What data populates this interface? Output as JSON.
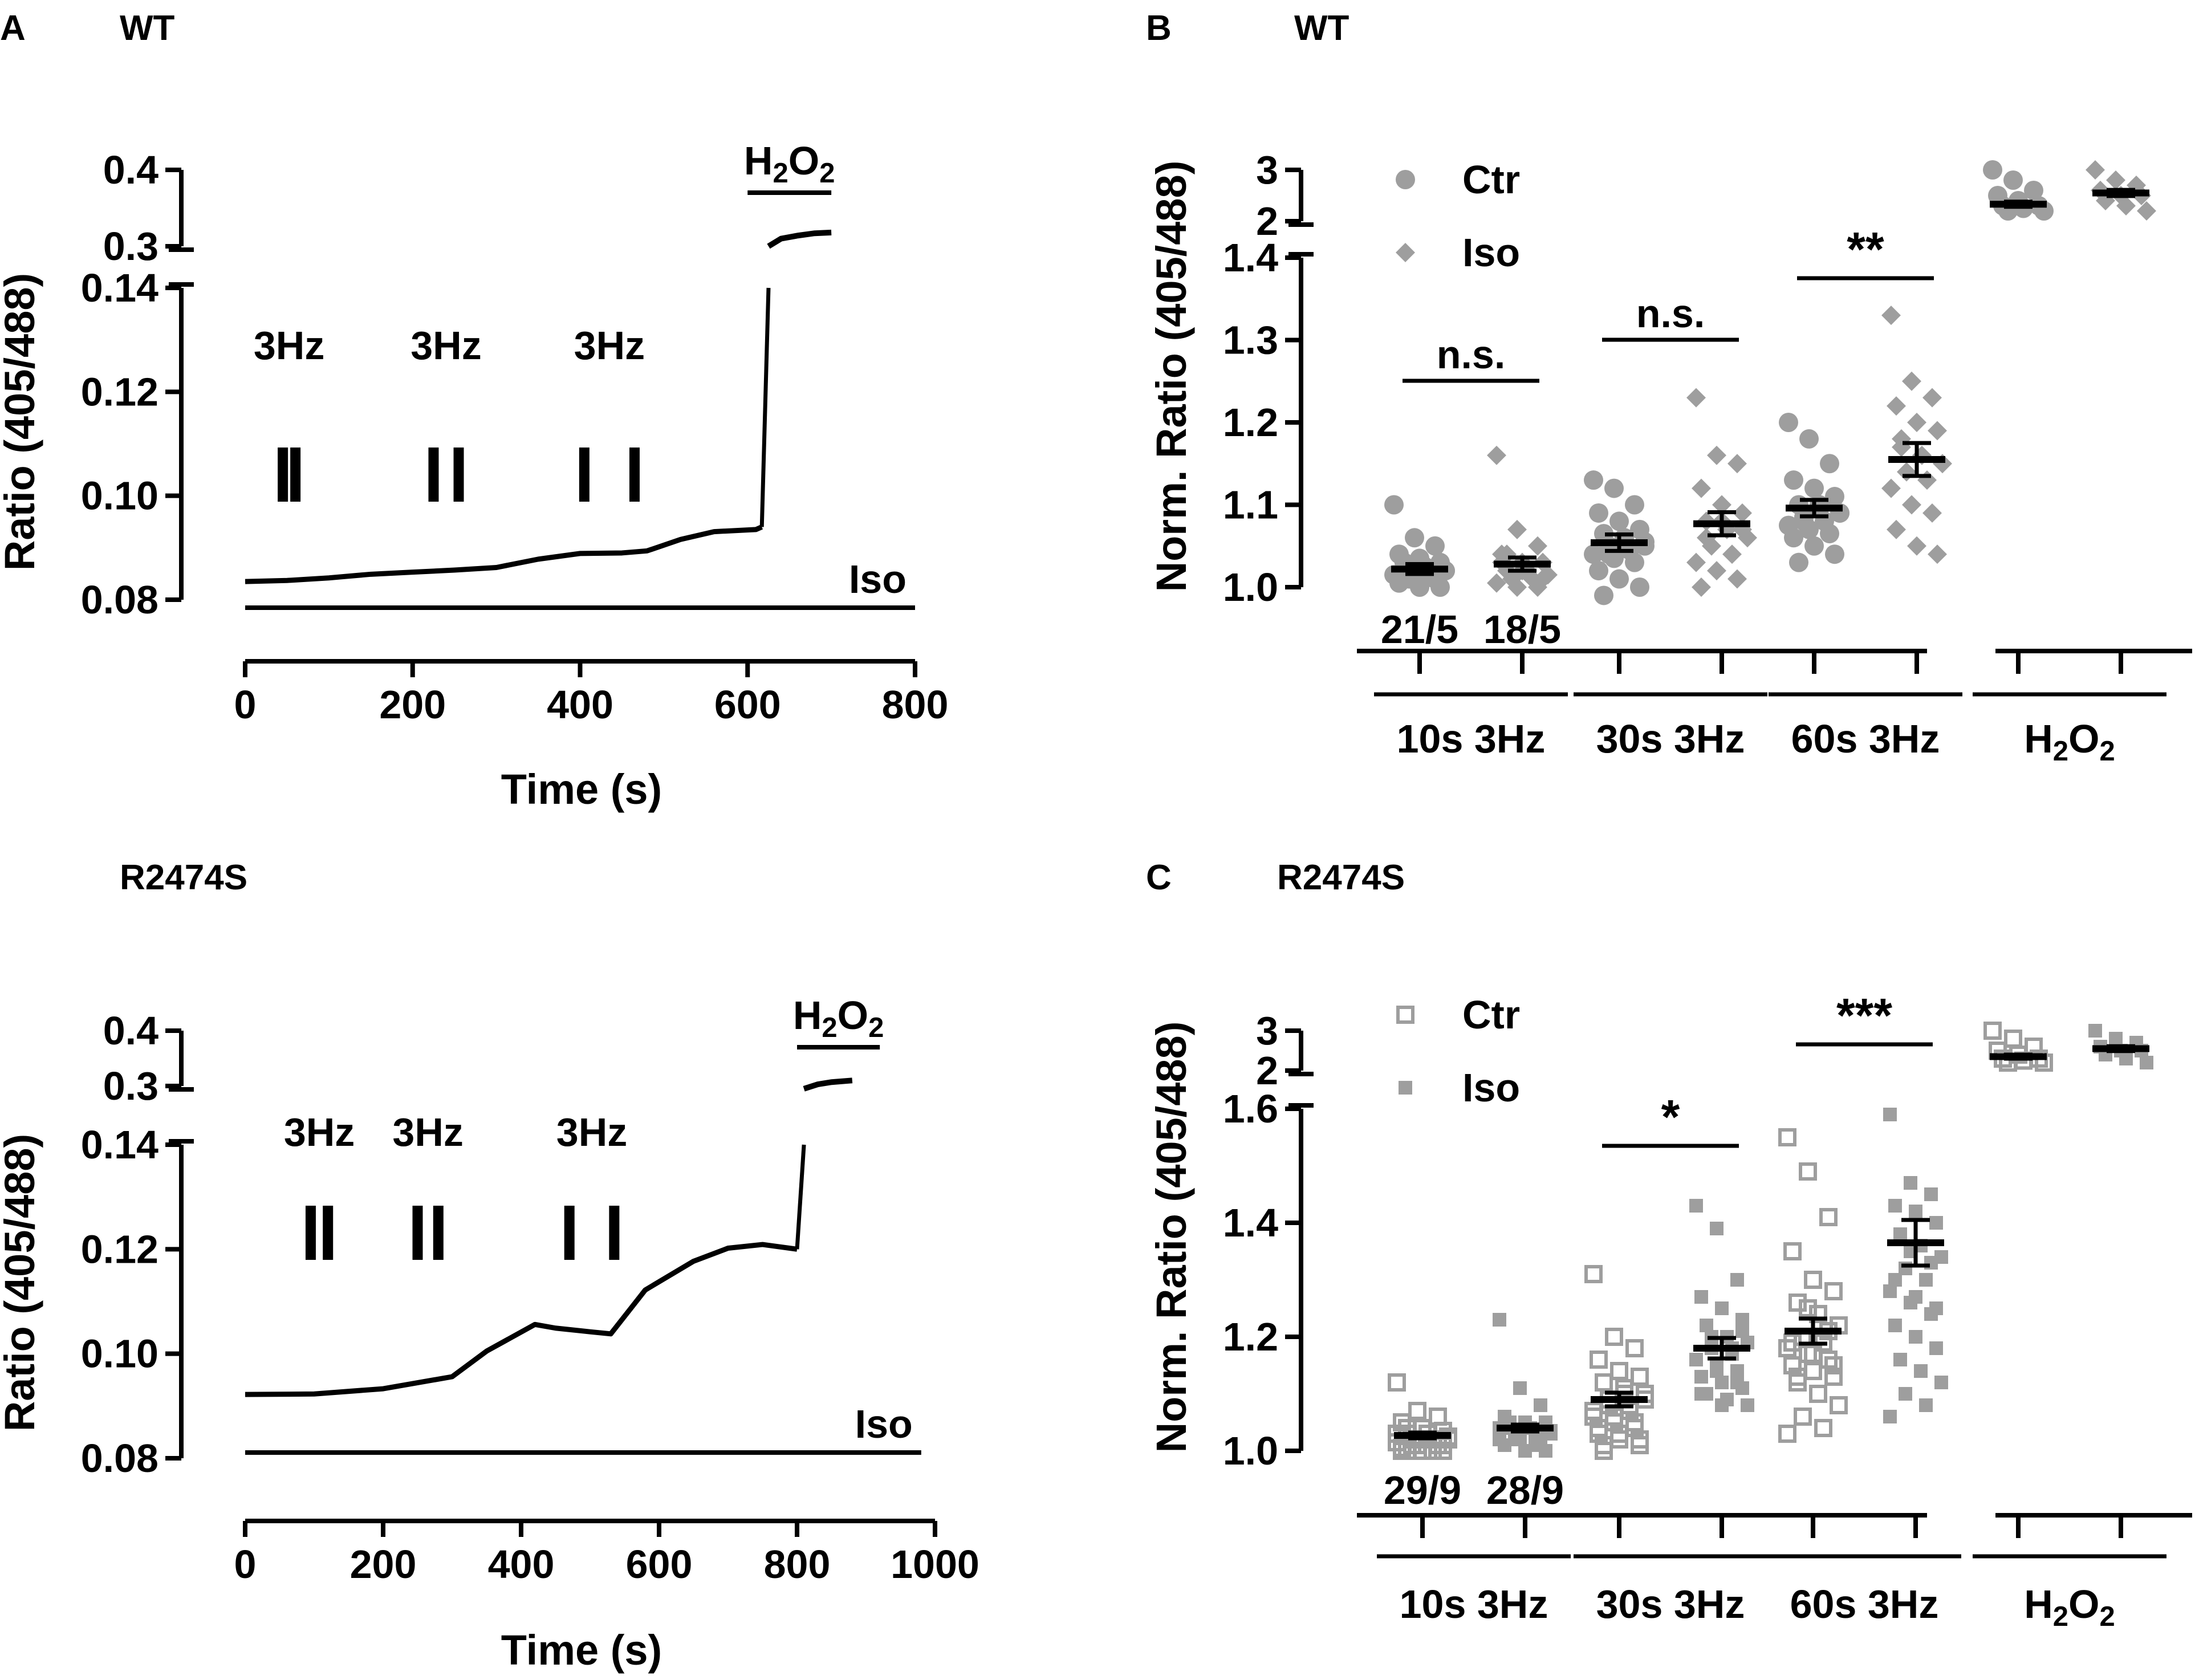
{
  "colors": {
    "ink": "#000000",
    "ctr": "#9e9e9e",
    "iso": "#9e9e9e"
  },
  "panels": {
    "A_top": {
      "letter": "A",
      "title": "WT",
      "xlabel": "Time (s)",
      "ylabel": "Ratio  (405/488)",
      "x_ticks": [
        "0",
        "200",
        "400",
        "600",
        "800"
      ],
      "y_ticks_low": [
        "0.08",
        "0.10",
        "0.12",
        "0.14"
      ],
      "y_ticks_high": [
        "0.3",
        "0.4"
      ],
      "stim_labels": [
        "3Hz",
        "3Hz",
        "3Hz"
      ],
      "drug_label": "Iso",
      "h2o2_label": "H2O2"
    },
    "A_bottom": {
      "title": "R2474S",
      "xlabel": "Time (s)",
      "ylabel": "Ratio  (405/488)",
      "x_ticks": [
        "0",
        "200",
        "400",
        "600",
        "800",
        "1000"
      ],
      "y_ticks_low": [
        "0.08",
        "0.10",
        "0.12",
        "0.14"
      ],
      "y_ticks_high": [
        "0.3",
        "0.4"
      ],
      "stim_labels": [
        "3Hz",
        "3Hz",
        "3Hz"
      ],
      "drug_label": "Iso",
      "h2o2_label": "H2O2"
    },
    "B": {
      "letter": "B",
      "title": "WT",
      "ylabel": "Norm. Ratio (405/488)",
      "y_ticks_low": [
        "1.0",
        "1.1",
        "1.2",
        "1.3",
        "1.4"
      ],
      "y_ticks_high": [
        "2",
        "3"
      ],
      "legend": [
        "Ctr",
        "Iso"
      ],
      "group_labels": [
        "10s  3Hz",
        "30s  3Hz",
        "60s  3Hz",
        "H2O2"
      ],
      "n_labels": [
        "21/5",
        "18/5"
      ],
      "significance": [
        "n.s.",
        "n.s.",
        "**"
      ]
    },
    "C": {
      "letter": "C",
      "title": "R2474S",
      "ylabel": "Norm. Ratio (405/488)",
      "y_ticks_low": [
        "1.0",
        "1.2",
        "1.4",
        "1.6"
      ],
      "y_ticks_high": [
        "2",
        "3"
      ],
      "legend": [
        "Ctr",
        "Iso"
      ],
      "group_labels": [
        "10s  3Hz",
        "30s  3Hz",
        "60s  3Hz",
        "H2O2"
      ],
      "n_labels": [
        "29/9",
        "28/9"
      ],
      "significance": [
        "*",
        "***"
      ]
    }
  },
  "chart_data": [
    {
      "id": "A_top",
      "type": "line",
      "title": "WT",
      "xlabel": "Time (s)",
      "ylabel": "Ratio  (405/488)",
      "xlim": [
        0,
        800
      ],
      "ylim": [
        0.08,
        0.14
      ],
      "ylim_high": [
        0.3,
        0.4
      ],
      "series": [
        {
          "name": "ratio",
          "x": [
            0,
            50,
            100,
            150,
            200,
            250,
            300,
            350,
            400,
            450,
            480,
            520,
            560,
            610,
            617
          ],
          "y": [
            0.0835,
            0.0837,
            0.0842,
            0.0849,
            0.0853,
            0.0857,
            0.0862,
            0.0878,
            0.0889,
            0.089,
            0.0894,
            0.0916,
            0.0931,
            0.0935,
            0.094
          ]
        }
      ],
      "h2o2_series": {
        "x": [
          625,
          640,
          660,
          680,
          700
        ],
        "y": [
          0.3,
          0.31,
          0.314,
          0.317,
          0.318
        ]
      },
      "stimulation_times": [
        [
          45,
          60
        ],
        [
          225,
          255
        ],
        [
          405,
          465
        ]
      ],
      "iso_bar": [
        0,
        800
      ],
      "h2o2_bar": [
        600,
        700
      ]
    },
    {
      "id": "A_bottom",
      "type": "line",
      "title": "R2474S",
      "xlabel": "Time (s)",
      "ylabel": "Ratio  (405/488)",
      "xlim": [
        0,
        1000
      ],
      "ylim": [
        0.08,
        0.14
      ],
      "ylim_high": [
        0.3,
        0.4
      ],
      "series": [
        {
          "name": "ratio",
          "x": [
            0,
            100,
            200,
            300,
            350,
            420,
            450,
            500,
            530,
            580,
            650,
            700,
            750,
            800
          ],
          "y": [
            0.0922,
            0.0923,
            0.0933,
            0.0956,
            0.1005,
            0.1056,
            0.1049,
            0.1042,
            0.1038,
            0.1122,
            0.1177,
            0.1202,
            0.1209,
            0.12
          ]
        }
      ],
      "h2o2_series": {
        "x": [
          810,
          830,
          850,
          880
        ],
        "y": [
          0.295,
          0.303,
          0.307,
          0.31
        ]
      },
      "stimulation_times": [
        [
          95,
          120
        ],
        [
          250,
          280
        ],
        [
          470,
          535
        ]
      ],
      "iso_bar": [
        0,
        980
      ],
      "h2o2_bar": [
        800,
        920
      ]
    },
    {
      "id": "B",
      "type": "scatter",
      "title": "WT",
      "ylabel": "Norm. Ratio (405/488)",
      "ylim": [
        1.0,
        1.4
      ],
      "ylim_high": [
        2,
        3
      ],
      "categories": [
        "10s  3Hz",
        "30s  3Hz",
        "60s  3Hz",
        "H2O2"
      ],
      "series": [
        {
          "name": "Ctr",
          "marker": "circle",
          "means": [
            1.022,
            1.054,
            1.096,
            2.33
          ],
          "sem": [
            0.006,
            0.01,
            0.01,
            0.05
          ],
          "points": [
            [
              1.1,
              1.06,
              1.05,
              1.04,
              1.035,
              1.03,
              1.03,
              1.025,
              1.02,
              1.02,
              1.015,
              1.015,
              1.01,
              1.01,
              1.005,
              1.0,
              1.0,
              1.03,
              1.025,
              1.02,
              1.01
            ],
            [
              1.13,
              1.12,
              1.1,
              1.09,
              1.08,
              1.07,
              1.065,
              1.06,
              1.055,
              1.05,
              1.045,
              1.04,
              1.035,
              1.03,
              1.02,
              1.01,
              1.0,
              0.99,
              1.06,
              1.05,
              1.04
            ],
            [
              1.2,
              1.18,
              1.15,
              1.13,
              1.12,
              1.11,
              1.1,
              1.095,
              1.09,
              1.085,
              1.08,
              1.075,
              1.07,
              1.065,
              1.06,
              1.05,
              1.04,
              1.03,
              1.1,
              1.09,
              1.08
            ],
            [
              3.0,
              2.8,
              2.6,
              2.5,
              2.4,
              2.3,
              2.3,
              2.25,
              2.2,
              2.2
            ]
          ]
        },
        {
          "name": "Iso",
          "marker": "diamond",
          "means": [
            1.028,
            1.077,
            1.155,
            2.55
          ],
          "sem": [
            0.008,
            0.014,
            0.02,
            0.06
          ],
          "points": [
            [
              1.16,
              1.07,
              1.05,
              1.04,
              1.03,
              1.03,
              1.02,
              1.02,
              1.015,
              1.01,
              1.01,
              1.005,
              1.0,
              1.0,
              1.03,
              1.02,
              1.01,
              1.04
            ],
            [
              1.23,
              1.16,
              1.15,
              1.12,
              1.1,
              1.09,
              1.08,
              1.07,
              1.06,
              1.05,
              1.04,
              1.03,
              1.02,
              1.01,
              1.0,
              1.08,
              1.07,
              1.06
            ],
            [
              1.33,
              1.25,
              1.23,
              1.22,
              1.2,
              1.19,
              1.18,
              1.16,
              1.15,
              1.14,
              1.13,
              1.12,
              1.1,
              1.09,
              1.07,
              1.05,
              1.04,
              1.17
            ],
            [
              3.0,
              2.8,
              2.7,
              2.6,
              2.5,
              2.5,
              2.4,
              2.3,
              2.2
            ]
          ]
        }
      ],
      "n_labels": [
        "21/5",
        "18/5"
      ],
      "significance": [
        {
          "label": "n.s.",
          "between": "10s  3Hz"
        },
        {
          "label": "n.s.",
          "between": "30s  3Hz"
        },
        {
          "label": "**",
          "between": "60s  3Hz"
        }
      ]
    },
    {
      "id": "C",
      "type": "scatter",
      "title": "R2474S",
      "ylabel": "Norm. Ratio (405/488)",
      "ylim": [
        1.0,
        1.6
      ],
      "ylim_high": [
        2,
        3
      ],
      "categories": [
        "10s  3Hz",
        "30s  3Hz",
        "60s  3Hz",
        "H2O2"
      ],
      "series": [
        {
          "name": "Ctr",
          "marker": "open-square",
          "means": [
            1.027,
            1.09,
            1.21,
            2.35
          ],
          "sem": [
            0.005,
            0.012,
            0.022,
            0.05
          ],
          "points": [
            [
              1.12,
              1.07,
              1.06,
              1.05,
              1.04,
              1.035,
              1.03,
              1.03,
              1.025,
              1.02,
              1.02,
              1.015,
              1.01,
              1.01,
              1.005,
              1.0,
              1.0,
              1.04,
              1.03,
              1.02,
              1.01,
              1.0,
              1.03,
              1.02,
              1.01,
              1.0,
              1.02,
              1.01,
              1.0
            ],
            [
              1.31,
              1.2,
              1.18,
              1.16,
              1.14,
              1.13,
              1.12,
              1.11,
              1.1,
              1.09,
              1.08,
              1.07,
              1.06,
              1.05,
              1.04,
              1.03,
              1.02,
              1.01,
              1.1,
              1.09,
              1.08,
              1.07,
              1.06,
              1.05,
              1.04,
              1.03,
              1.02,
              1.01,
              1.0
            ],
            [
              1.55,
              1.49,
              1.41,
              1.35,
              1.3,
              1.28,
              1.26,
              1.24,
              1.22,
              1.2,
              1.19,
              1.18,
              1.17,
              1.16,
              1.15,
              1.14,
              1.13,
              1.12,
              1.1,
              1.08,
              1.06,
              1.04,
              1.03,
              1.25,
              1.21,
              1.19,
              1.17,
              1.15,
              1.13
            ],
            [
              3.0,
              2.8,
              2.6,
              2.5,
              2.4,
              2.3,
              2.3,
              2.25,
              2.2,
              2.2
            ]
          ]
        },
        {
          "name": "Iso",
          "marker": "filled-square",
          "means": [
            1.04,
            1.18,
            1.365,
            2.55
          ],
          "sem": [
            0.006,
            0.018,
            0.04,
            0.06
          ],
          "points": [
            [
              1.23,
              1.11,
              1.08,
              1.06,
              1.05,
              1.05,
              1.04,
              1.04,
              1.035,
              1.03,
              1.03,
              1.02,
              1.02,
              1.01,
              1.01,
              1.0,
              1.0,
              1.05,
              1.04,
              1.03,
              1.02,
              1.01,
              1.04,
              1.03,
              1.02,
              1.05,
              1.04,
              1.03
            ],
            [
              1.43,
              1.39,
              1.3,
              1.27,
              1.25,
              1.23,
              1.22,
              1.2,
              1.19,
              1.18,
              1.17,
              1.16,
              1.15,
              1.14,
              1.13,
              1.12,
              1.11,
              1.1,
              1.09,
              1.08,
              1.2,
              1.18,
              1.16,
              1.14,
              1.12,
              1.1,
              1.08,
              1.21
            ],
            [
              1.59,
              1.47,
              1.45,
              1.43,
              1.42,
              1.4,
              1.38,
              1.36,
              1.34,
              1.32,
              1.3,
              1.28,
              1.26,
              1.24,
              1.22,
              1.2,
              1.18,
              1.16,
              1.14,
              1.12,
              1.1,
              1.08,
              1.06,
              1.35,
              1.33,
              1.3,
              1.27,
              1.25
            ],
            [
              3.0,
              2.8,
              2.7,
              2.6,
              2.5,
              2.5,
              2.4,
              2.3,
              2.2
            ]
          ]
        }
      ],
      "n_labels": [
        "29/9",
        "28/9"
      ],
      "significance": [
        {
          "label": "*",
          "between": "30s  3Hz"
        },
        {
          "label": "***",
          "between": "60s  3Hz"
        }
      ]
    }
  ]
}
